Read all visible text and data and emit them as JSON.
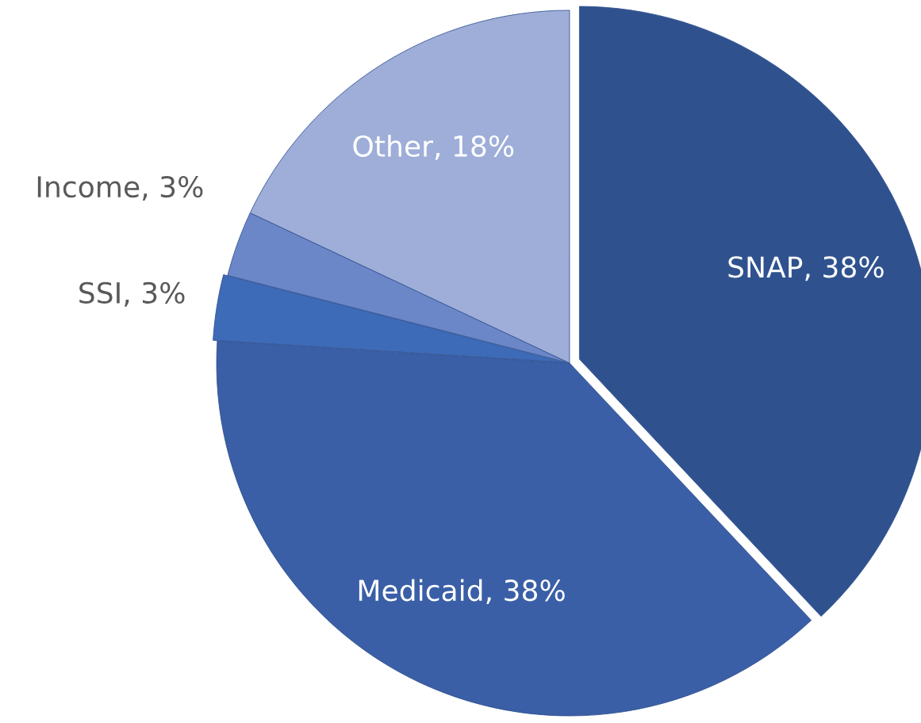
{
  "chart_data": {
    "type": "pie",
    "categories": [
      "SNAP",
      "Medicaid",
      "SSI",
      "Income",
      "Other"
    ],
    "values": [
      38,
      38,
      3,
      3,
      18
    ],
    "colors": [
      "#2f528f",
      "#3a5fa6",
      "#3d6bb8",
      "#6b87c8",
      "#9eaed8"
    ],
    "value_labels": [
      "38%",
      "38%",
      "3%",
      "3%",
      "18%"
    ],
    "legend": false
  }
}
